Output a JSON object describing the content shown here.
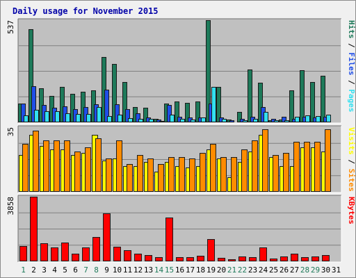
{
  "chart_data": {
    "type": "bar",
    "title": "Daily usage for November 2015",
    "categories": [
      "1",
      "2",
      "3",
      "4",
      "5",
      "6",
      "7",
      "8",
      "9",
      "10",
      "11",
      "12",
      "13",
      "14",
      "15",
      "16",
      "17",
      "18",
      "19",
      "20",
      "21",
      "22",
      "23",
      "24",
      "25",
      "26",
      "27",
      "28",
      "29",
      "30",
      "31"
    ],
    "weekend_days": [
      "1",
      "7",
      "8",
      "14",
      "15",
      "21",
      "22",
      "28",
      "29"
    ],
    "panels": [
      {
        "id": "pages-files-hits",
        "max_label": "537",
        "ylim": [
          0,
          537
        ],
        "series": [
          {
            "name": "Hits",
            "color": "#1e7a5a",
            "values": [
              100,
              490,
              180,
              140,
              185,
              150,
              160,
              168,
              345,
              307,
              212,
              80,
              78,
              20,
              100,
              108,
              103,
              110,
              537,
              185,
              16,
              55,
              277,
              210,
              10,
              13,
              167,
              274,
              213,
              245,
              0
            ]
          },
          {
            "name": "Files",
            "color": "#1f4ee8",
            "values": [
              100,
              190,
              90,
              75,
              83,
              70,
              80,
              96,
              173,
              95,
              68,
              48,
              25,
              16,
              90,
              30,
              25,
              26,
              100,
              25,
              12,
              18,
              28,
              80,
              18,
              30,
              20,
              30,
              25,
              30,
              0
            ]
          },
          {
            "name": "Pages",
            "color": "#33e0f0",
            "values": [
              35,
              65,
              60,
              58,
              48,
              43,
              45,
              80,
              32,
              40,
              22,
              18,
              18,
              8,
              40,
              18,
              14,
              26,
              186,
              20,
              5,
              10,
              17,
              55,
              12,
              10,
              28,
              35,
              32,
              40,
              0
            ]
          }
        ],
        "legend_labels": [
          {
            "text": "Pages",
            "color": "#33e0f0"
          },
          {
            "text": "Files",
            "color": "#1f4ee8"
          },
          {
            "text": "Hits",
            "color": "#1e7a5a"
          }
        ],
        "legend_separator": "/"
      },
      {
        "id": "sites-visits",
        "max_label": "35",
        "ylim": [
          0,
          35
        ],
        "series": [
          {
            "name": "Visits",
            "color": "#ffff00",
            "values": [
              20,
              31,
              25,
              23,
              23,
              20,
              21,
              31,
              17,
              18,
              14,
              14,
              16,
              11,
              16,
              14,
              13,
              14,
              23,
              18,
              8,
              16,
              22,
              31,
              19,
              14,
              14,
              24,
              24,
              22,
              0
            ]
          },
          {
            "name": "Sites",
            "color": "#ff8c00",
            "values": [
              26,
              33,
              28,
              28,
              28,
              22,
              24,
              29,
              18,
              28,
              15,
              20,
              18,
              15,
              19,
              19,
              18,
              21,
              26,
              19,
              19,
              23,
              28,
              34,
              20,
              21,
              27,
              27,
              27,
              34,
              0
            ]
          }
        ],
        "legend_labels": [
          {
            "text": "Sites",
            "color": "#ff8c00"
          },
          {
            "text": "Visits",
            "color": "#ffff00"
          }
        ],
        "legend_separator": "/"
      },
      {
        "id": "kbytes",
        "max_label": "3858",
        "ylim": [
          0,
          3858
        ],
        "series": [
          {
            "name": "KBytes",
            "color": "#ff0000",
            "values": [
              924,
              3858,
              1066,
              850,
              1120,
              461,
              821,
              1452,
              2849,
              880,
              663,
              437,
              382,
              231,
              2593,
              231,
              231,
              330,
              1320,
              198,
              115,
              281,
              246,
              826,
              186,
              278,
              442,
              248,
              281,
              355,
              0
            ]
          }
        ],
        "legend_labels": [
          {
            "text": "KBytes",
            "color": "#ff0000"
          }
        ],
        "legend_separator": ""
      }
    ]
  }
}
